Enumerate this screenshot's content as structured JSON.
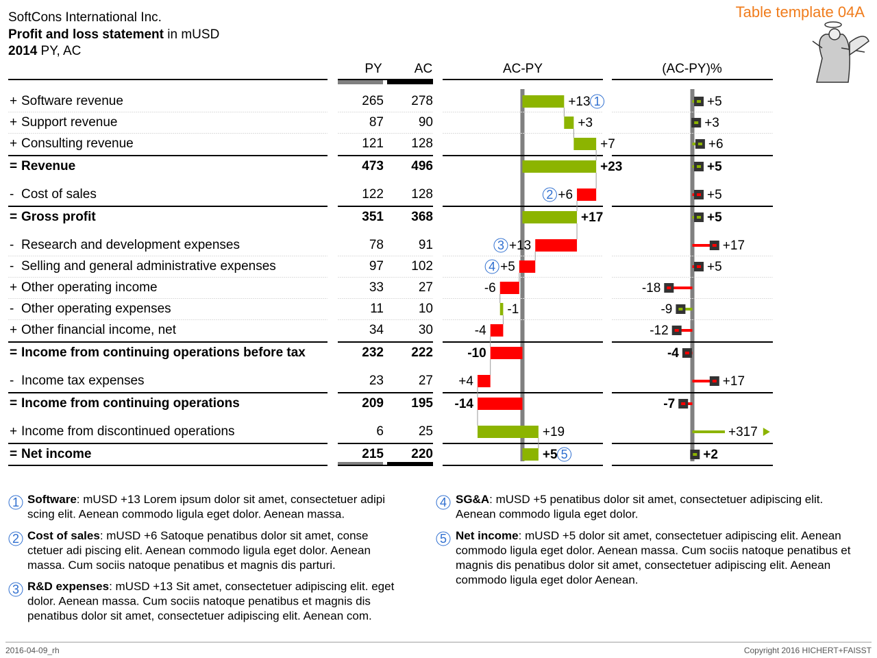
{
  "header": {
    "company": "SoftCons International Inc.",
    "title_bold": "Profit and loss statement",
    "title_rest": " in mUSD",
    "year": "2014",
    "scenario": " PY, AC",
    "template": "Table template 04A"
  },
  "columns": {
    "py": "PY",
    "ac": "AC",
    "delta": "AC-PY",
    "pct": "(AC-PY)%"
  },
  "delta_xlim": [
    -25,
    25
  ],
  "pct_xlim": [
    -25,
    25
  ],
  "colors": {
    "good": "#8cb400",
    "bad": "#ff0000"
  },
  "rows": [
    {
      "operator": "+",
      "label": "Software revenue",
      "py": 265,
      "ac": 278,
      "delta": 13,
      "delta_label": "+13",
      "pct": 5,
      "pct_label": "+5",
      "note": 1
    },
    {
      "operator": "+",
      "label": "Support revenue",
      "py": 87,
      "ac": 90,
      "delta": 3,
      "delta_label": "+3",
      "pct": 3,
      "pct_label": "+3"
    },
    {
      "operator": "+",
      "label": "Consulting revenue",
      "py": 121,
      "ac": 128,
      "delta": 7,
      "delta_label": "+7",
      "pct": 6,
      "pct_label": "+6"
    },
    {
      "operator": "=",
      "label": "Revenue",
      "py": 473,
      "ac": 496,
      "delta": 23,
      "delta_label": "+23",
      "pct": 5,
      "pct_label": "+5"
    },
    {
      "operator": "-",
      "label": "Cost of sales",
      "py": 122,
      "ac": 128,
      "delta": 6,
      "delta_label": "+6",
      "pct": 5,
      "pct_label": "+5",
      "note": 2
    },
    {
      "operator": "=",
      "label": "Gross profit",
      "py": 351,
      "ac": 368,
      "delta": 17,
      "delta_label": "+17",
      "pct": 5,
      "pct_label": "+5"
    },
    {
      "operator": "-",
      "label": "Research and development expenses",
      "py": 78,
      "ac": 91,
      "delta": 13,
      "delta_label": "+13",
      "pct": 17,
      "pct_label": "+17",
      "note": 3
    },
    {
      "operator": "-",
      "label": "Selling and general administrative expenses",
      "py": 97,
      "ac": 102,
      "delta": 5,
      "delta_label": "+5",
      "pct": 5,
      "pct_label": "+5",
      "note": 4
    },
    {
      "operator": "+",
      "label": "Other operating income",
      "py": 33,
      "ac": 27,
      "delta": -6,
      "delta_label": "-6",
      "pct": -18,
      "pct_label": "-18"
    },
    {
      "operator": "-",
      "label": "Other operating expenses",
      "py": 11,
      "ac": 10,
      "delta": -1,
      "delta_label": "-1",
      "pct": -9,
      "pct_label": "-9"
    },
    {
      "operator": "+",
      "label": "Other financial income, net",
      "py": 34,
      "ac": 30,
      "delta": -4,
      "delta_label": "-4",
      "pct": -12,
      "pct_label": "-12"
    },
    {
      "operator": "=",
      "label": "Income from continuing operations before tax",
      "py": 232,
      "ac": 222,
      "delta": -10,
      "delta_label": "-10",
      "pct": -4,
      "pct_label": "-4"
    },
    {
      "operator": "-",
      "label": "Income tax expenses",
      "py": 23,
      "ac": 27,
      "delta": 4,
      "delta_label": "+4",
      "pct": 17,
      "pct_label": "+17"
    },
    {
      "operator": "=",
      "label": "Income from continuing operations",
      "py": 209,
      "ac": 195,
      "delta": -14,
      "delta_label": "-14",
      "pct": -7,
      "pct_label": "-7"
    },
    {
      "operator": "+",
      "label": "Income from discontinued operations",
      "py": 6,
      "ac": 25,
      "delta": 19,
      "delta_label": "+19",
      "pct": 317,
      "pct_label": "+317"
    },
    {
      "operator": "=",
      "label": "Net income",
      "py": 215,
      "ac": 220,
      "delta": 5,
      "delta_label": "+5",
      "pct": 2,
      "pct_label": "+2",
      "note": 5
    }
  ],
  "notes": [
    {
      "number": 1,
      "title": "Software",
      "lines": [
        ": mUSD +13 Lorem ipsum dolor sit amet, consectetuer adipi",
        "scing elit. Aenean commodo ligula eget dolor. Aenean massa."
      ]
    },
    {
      "number": 2,
      "title": "Cost of sales",
      "lines": [
        ": mUSD +6 Satoque penatibus dolor sit amet, conse",
        "ctetuer adi piscing elit. Aenean commodo ligula eget dolor. Aenean",
        "massa. Cum sociis natoque penatibus et magnis dis parturi."
      ]
    },
    {
      "number": 3,
      "title": "R&D expenses",
      "lines": [
        ": mUSD +13 Sit amet, consectetuer adipiscing elit. eget",
        "dolor. Aenean massa. Cum sociis natoque penatibus et magnis dis",
        "penatibus dolor sit amet, consectetuer adipiscing elit. Aenean com."
      ]
    },
    {
      "number": 4,
      "title": "SG&A",
      "lines": [
        ": mUSD +5 penatibus dolor sit amet, consectetuer adipiscing elit.",
        "Aenean commodo ligula eget dolor."
      ]
    },
    {
      "number": 5,
      "title": "Net income",
      "lines": [
        ": mUSD +5 dolor sit amet, consectetuer adipiscing elit. Aenean",
        "commodo ligula eget dolor. Aenean massa. Cum sociis natoque penatibus et",
        "magnis dis penatibus dolor sit amet, consectetuer adipiscing elit. Aenean",
        "commodo ligula eget dolor Aenean."
      ]
    }
  ],
  "footer": {
    "date": "2016-04-09_rh",
    "copyright": "Copyright 2016 HICHERT+FAISST"
  }
}
